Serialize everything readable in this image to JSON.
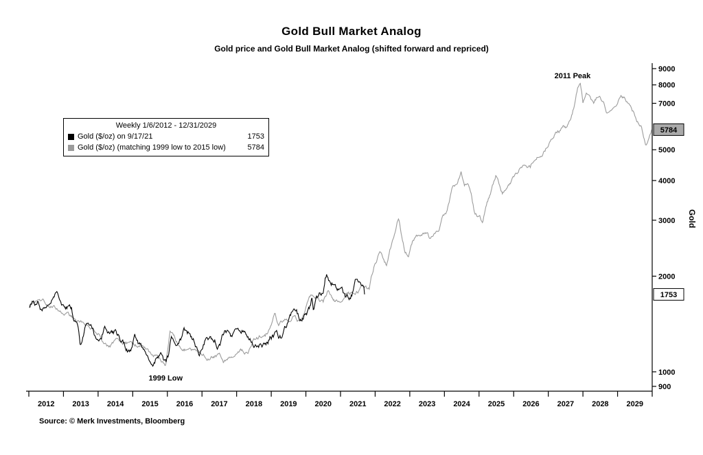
{
  "chart_data": {
    "type": "line",
    "title": "Gold Bull Market Analog",
    "subtitle": "Gold price and Gold Bull Market Analog (shifted forward and repriced)",
    "source": "Source: © Merk Investments, Bloomberg",
    "ylabel": "Gold",
    "y_scale": "log",
    "ylim": [
      900,
      9000
    ],
    "y_ticks": [
      900,
      1000,
      2000,
      3000,
      4000,
      5000,
      7000,
      8000,
      9000
    ],
    "xlim": [
      2012,
      2030
    ],
    "x_years": [
      2012,
      2013,
      2014,
      2015,
      2016,
      2017,
      2018,
      2019,
      2020,
      2021,
      2022,
      2023,
      2024,
      2025,
      2026,
      2027,
      2028,
      2029
    ],
    "legend": {
      "period": "Weekly 1/6/2012 - 12/31/2029",
      "series": [
        {
          "label": "Gold ($/oz) on 9/17/21",
          "value": "1753",
          "color": "#000000"
        },
        {
          "label": "Gold ($/oz) (matching 1999 low to 2015 low)",
          "value": "5784",
          "color": "#9b9b9b"
        }
      ]
    },
    "annotations": [
      {
        "text": "2011 Peak",
        "x": 2027.7,
        "y": 8400
      },
      {
        "text": "1999 Low",
        "x": 2015.95,
        "y": 940
      }
    ],
    "last_value_boxes": [
      {
        "value": "5784",
        "y": 5784,
        "bg": "#aaaaaa",
        "fg": "#000000"
      },
      {
        "value": "1753",
        "y": 1753,
        "bg": "#ffffff",
        "fg": "#000000"
      }
    ],
    "series": [
      {
        "key": "analog-line",
        "name": "Gold ($/oz) (matching 1999 low to 2015 low)",
        "color": "#9b9b9b",
        "jitter": 0.022,
        "points": [
          [
            2012.02,
            1600
          ],
          [
            2012.12,
            1635
          ],
          [
            2012.22,
            1695
          ],
          [
            2012.32,
            1725
          ],
          [
            2012.42,
            1680
          ],
          [
            2012.55,
            1645
          ],
          [
            2012.7,
            1622
          ],
          [
            2012.85,
            1605
          ],
          [
            2013.0,
            1585
          ],
          [
            2013.18,
            1512
          ],
          [
            2013.35,
            1462
          ],
          [
            2013.5,
            1420
          ],
          [
            2013.68,
            1382
          ],
          [
            2013.85,
            1355
          ],
          [
            2014.0,
            1322
          ],
          [
            2014.15,
            1262
          ],
          [
            2014.33,
            1212
          ],
          [
            2014.5,
            1242
          ],
          [
            2014.65,
            1226
          ],
          [
            2014.83,
            1232
          ],
          [
            2015.0,
            1216
          ],
          [
            2015.15,
            1202
          ],
          [
            2015.33,
            1192
          ],
          [
            2015.5,
            1140
          ],
          [
            2015.65,
            1112
          ],
          [
            2015.8,
            1076
          ],
          [
            2015.95,
            1052
          ],
          [
            2016.08,
            1352
          ],
          [
            2016.2,
            1292
          ],
          [
            2016.33,
            1212
          ],
          [
            2016.48,
            1182
          ],
          [
            2016.63,
            1192
          ],
          [
            2016.83,
            1172
          ],
          [
            2017.0,
            1142
          ],
          [
            2017.15,
            1112
          ],
          [
            2017.33,
            1106
          ],
          [
            2017.5,
            1122
          ],
          [
            2017.63,
            1068
          ],
          [
            2017.8,
            1132
          ],
          [
            2017.95,
            1162
          ],
          [
            2018.1,
            1192
          ],
          [
            2018.33,
            1172
          ],
          [
            2018.48,
            1292
          ],
          [
            2018.65,
            1312
          ],
          [
            2018.83,
            1316
          ],
          [
            2019.0,
            1402
          ],
          [
            2019.1,
            1532
          ],
          [
            2019.2,
            1432
          ],
          [
            2019.33,
            1462
          ],
          [
            2019.5,
            1492
          ],
          [
            2019.65,
            1522
          ],
          [
            2019.83,
            1442
          ],
          [
            2019.95,
            1502
          ],
          [
            2020.1,
            1692
          ],
          [
            2020.23,
            1742
          ],
          [
            2020.35,
            1732
          ],
          [
            2020.5,
            1642
          ],
          [
            2020.63,
            1772
          ],
          [
            2020.83,
            1648
          ],
          [
            2021.0,
            1702
          ],
          [
            2021.15,
            1792
          ],
          [
            2021.33,
            1772
          ],
          [
            2021.5,
            1822
          ],
          [
            2021.63,
            1862
          ],
          [
            2021.83,
            1795
          ],
          [
            2021.95,
            2092
          ],
          [
            2022.08,
            2302
          ],
          [
            2022.18,
            2332
          ],
          [
            2022.33,
            2172
          ],
          [
            2022.48,
            2502
          ],
          [
            2022.58,
            2702
          ],
          [
            2022.68,
            3022
          ],
          [
            2022.76,
            2702
          ],
          [
            2022.85,
            2432
          ],
          [
            2022.95,
            2342
          ],
          [
            2023.08,
            2562
          ],
          [
            2023.18,
            2702
          ],
          [
            2023.33,
            2672
          ],
          [
            2023.48,
            2722
          ],
          [
            2023.58,
            2622
          ],
          [
            2023.73,
            2782
          ],
          [
            2023.85,
            2752
          ],
          [
            2023.95,
            3002
          ],
          [
            2024.08,
            3182
          ],
          [
            2024.23,
            3752
          ],
          [
            2024.38,
            3902
          ],
          [
            2024.48,
            4216
          ],
          [
            2024.58,
            3822
          ],
          [
            2024.68,
            3882
          ],
          [
            2024.78,
            3602
          ],
          [
            2024.88,
            3102
          ],
          [
            2025.0,
            3052
          ],
          [
            2025.1,
            2972
          ],
          [
            2025.23,
            3402
          ],
          [
            2025.33,
            3632
          ],
          [
            2025.48,
            4132
          ],
          [
            2025.58,
            3902
          ],
          [
            2025.68,
            3672
          ],
          [
            2025.83,
            3902
          ],
          [
            2026.0,
            4102
          ],
          [
            2026.1,
            4172
          ],
          [
            2026.23,
            4422
          ],
          [
            2026.33,
            4592
          ],
          [
            2026.48,
            4502
          ],
          [
            2026.63,
            4832
          ],
          [
            2026.83,
            5002
          ],
          [
            2026.95,
            5202
          ],
          [
            2027.08,
            5482
          ],
          [
            2027.23,
            5762
          ],
          [
            2027.33,
            5802
          ],
          [
            2027.43,
            5922
          ],
          [
            2027.53,
            5852
          ],
          [
            2027.62,
            6102
          ],
          [
            2027.7,
            6502
          ],
          [
            2027.78,
            7102
          ],
          [
            2027.85,
            7702
          ],
          [
            2027.92,
            8002
          ],
          [
            2028.0,
            7002
          ],
          [
            2028.1,
            7402
          ],
          [
            2028.2,
            7302
          ],
          [
            2028.3,
            6902
          ],
          [
            2028.45,
            7422
          ],
          [
            2028.55,
            7202
          ],
          [
            2028.7,
            6602
          ],
          [
            2028.85,
            6902
          ],
          [
            2029.0,
            7102
          ],
          [
            2029.1,
            7402
          ],
          [
            2029.25,
            7152
          ],
          [
            2029.4,
            6802
          ],
          [
            2029.55,
            6302
          ],
          [
            2029.7,
            5902
          ],
          [
            2029.8,
            5252
          ],
          [
            2029.9,
            5452
          ],
          [
            2029.99,
            5784
          ]
        ]
      },
      {
        "key": "gold-price-line",
        "name": "Gold ($/oz) on 9/17/21",
        "color": "#000000",
        "jitter": 0.035,
        "points": [
          [
            2012.02,
            1617
          ],
          [
            2012.1,
            1700
          ],
          [
            2012.17,
            1640
          ],
          [
            2012.25,
            1660
          ],
          [
            2012.33,
            1585
          ],
          [
            2012.42,
            1590
          ],
          [
            2012.5,
            1580
          ],
          [
            2012.6,
            1615
          ],
          [
            2012.7,
            1740
          ],
          [
            2012.77,
            1775
          ],
          [
            2012.85,
            1720
          ],
          [
            2012.95,
            1660
          ],
          [
            2013.05,
            1670
          ],
          [
            2013.15,
            1612
          ],
          [
            2013.24,
            1580
          ],
          [
            2013.3,
            1400
          ],
          [
            2013.4,
            1425
          ],
          [
            2013.48,
            1230
          ],
          [
            2013.57,
            1290
          ],
          [
            2013.65,
            1370
          ],
          [
            2013.75,
            1330
          ],
          [
            2013.85,
            1310
          ],
          [
            2013.93,
            1240
          ],
          [
            2014.0,
            1205
          ],
          [
            2014.1,
            1265
          ],
          [
            2014.2,
            1380
          ],
          [
            2014.3,
            1290
          ],
          [
            2014.42,
            1300
          ],
          [
            2014.52,
            1320
          ],
          [
            2014.63,
            1280
          ],
          [
            2014.73,
            1230
          ],
          [
            2014.83,
            1190
          ],
          [
            2014.9,
            1160
          ],
          [
            2014.98,
            1195
          ],
          [
            2015.06,
            1290
          ],
          [
            2015.15,
            1210
          ],
          [
            2015.23,
            1180
          ],
          [
            2015.33,
            1205
          ],
          [
            2015.43,
            1170
          ],
          [
            2015.53,
            1095
          ],
          [
            2015.62,
            1085
          ],
          [
            2015.72,
            1135
          ],
          [
            2015.8,
            1160
          ],
          [
            2015.88,
            1070
          ],
          [
            2015.96,
            1055
          ],
          [
            2016.04,
            1095
          ],
          [
            2016.1,
            1240
          ],
          [
            2016.18,
            1255
          ],
          [
            2016.28,
            1235
          ],
          [
            2016.38,
            1290
          ],
          [
            2016.48,
            1365
          ],
          [
            2016.56,
            1340
          ],
          [
            2016.66,
            1320
          ],
          [
            2016.75,
            1270
          ],
          [
            2016.83,
            1215
          ],
          [
            2016.92,
            1135
          ],
          [
            2017.0,
            1155
          ],
          [
            2017.08,
            1235
          ],
          [
            2017.17,
            1250
          ],
          [
            2017.27,
            1255
          ],
          [
            2017.36,
            1270
          ],
          [
            2017.46,
            1225
          ],
          [
            2017.55,
            1255
          ],
          [
            2017.66,
            1345
          ],
          [
            2017.76,
            1300
          ],
          [
            2017.84,
            1275
          ],
          [
            2017.94,
            1290
          ],
          [
            2018.03,
            1335
          ],
          [
            2018.13,
            1330
          ],
          [
            2018.23,
            1350
          ],
          [
            2018.33,
            1340
          ],
          [
            2018.43,
            1300
          ],
          [
            2018.53,
            1250
          ],
          [
            2018.62,
            1185
          ],
          [
            2018.72,
            1200
          ],
          [
            2018.82,
            1215
          ],
          [
            2018.9,
            1230
          ],
          [
            2018.98,
            1280
          ],
          [
            2019.07,
            1292
          ],
          [
            2019.15,
            1312
          ],
          [
            2019.24,
            1295
          ],
          [
            2019.32,
            1282
          ],
          [
            2019.41,
            1345
          ],
          [
            2019.49,
            1412
          ],
          [
            2019.57,
            1505
          ],
          [
            2019.66,
            1528
          ],
          [
            2019.72,
            1552
          ],
          [
            2019.8,
            1480
          ],
          [
            2019.89,
            1468
          ],
          [
            2019.97,
            1515
          ],
          [
            2020.05,
            1562
          ],
          [
            2020.12,
            1585
          ],
          [
            2020.17,
            1680
          ],
          [
            2020.22,
            1485
          ],
          [
            2020.3,
            1625
          ],
          [
            2020.4,
            1725
          ],
          [
            2020.49,
            1772
          ],
          [
            2020.56,
            1985
          ],
          [
            2020.6,
            2060
          ],
          [
            2020.67,
            1940
          ],
          [
            2020.74,
            1902
          ],
          [
            2020.82,
            1905
          ],
          [
            2020.89,
            1870
          ],
          [
            2020.96,
            1882
          ],
          [
            2021.02,
            1950
          ],
          [
            2021.08,
            1845
          ],
          [
            2021.15,
            1728
          ],
          [
            2021.22,
            1742
          ],
          [
            2021.29,
            1736
          ],
          [
            2021.36,
            1782
          ],
          [
            2021.43,
            1885
          ],
          [
            2021.46,
            1900
          ],
          [
            2021.53,
            1862
          ],
          [
            2021.59,
            1782
          ],
          [
            2021.64,
            1812
          ],
          [
            2021.68,
            1785
          ],
          [
            2021.71,
            1753
          ]
        ]
      }
    ]
  }
}
